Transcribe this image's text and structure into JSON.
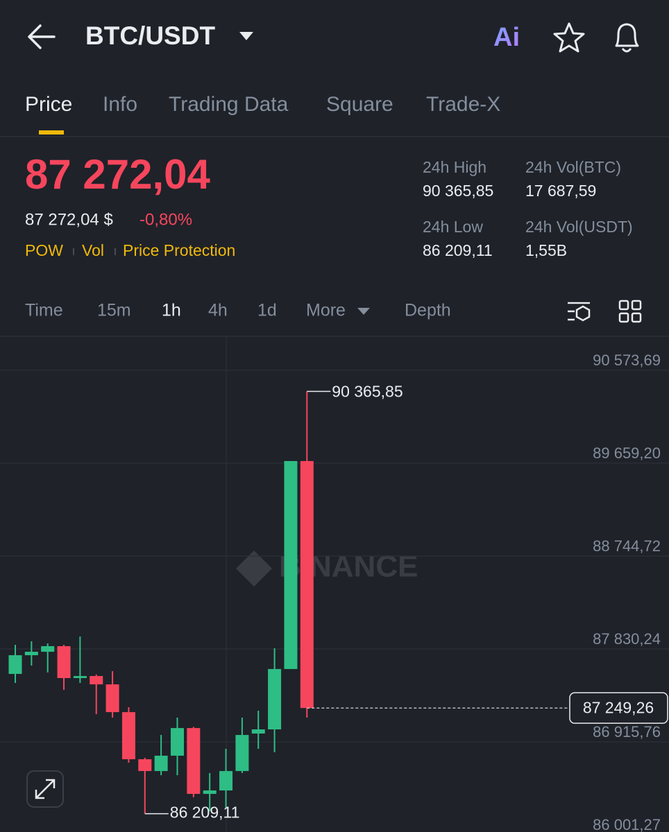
{
  "header": {
    "pair": "BTC/USDT",
    "ai": "Ai"
  },
  "tabs": [
    "Price",
    "Info",
    "Trading Data",
    "Square",
    "Trade-X"
  ],
  "price": {
    "last": "87 272,04",
    "fiat": "87 272,04 $",
    "change": "-0,80%",
    "tags": [
      "POW",
      "Vol",
      "Price Protection"
    ]
  },
  "stats": [
    {
      "label": "24h High",
      "value": "90 365,85"
    },
    {
      "label": "24h Vol(BTC)",
      "value": "17 687,59"
    },
    {
      "label": "24h Low",
      "value": "86 209,11"
    },
    {
      "label": "24h Vol(USDT)",
      "value": "1,55B"
    }
  ],
  "intervals": [
    "Time",
    "15m",
    "1h",
    "4h",
    "1d",
    "More",
    "Depth"
  ],
  "chart_data": {
    "type": "candlestick",
    "watermark": "BINANCE",
    "open": [
      87585,
      87769,
      87803,
      87858,
      87544,
      87564,
      87482,
      87209,
      86745,
      86629,
      86780,
      87052,
      86404,
      86438,
      86629,
      86998,
      87039,
      87633,
      89680
    ],
    "high": [
      87871,
      87906,
      87885,
      87871,
      87953,
      87579,
      87612,
      87257,
      86759,
      86984,
      87155,
      87064,
      86609,
      86848,
      87155,
      87223,
      87837,
      89680,
      90365.85
    ],
    "low": [
      87496,
      87667,
      87599,
      87428,
      87496,
      87189,
      87155,
      86711,
      86209.11,
      86588,
      86588,
      86370,
      86234,
      86259,
      86609,
      86848,
      86814,
      87633,
      87155
    ],
    "close": [
      87769,
      87803,
      87858,
      87544,
      87564,
      87482,
      87209,
      86745,
      86629,
      86780,
      87052,
      86404,
      86438,
      86629,
      86984,
      87039,
      87633,
      89680,
      87249.26
    ],
    "up_color": "#2ebd85",
    "down_color": "#f6465d",
    "ylim": [
      86029,
      90908
    ],
    "yticks": [
      {
        "value": 90573.69,
        "label": "90 573,69"
      },
      {
        "value": 89659.2,
        "label": "89 659,20"
      },
      {
        "value": 88744.72,
        "label": "88 744,72"
      },
      {
        "value": 87830.24,
        "label": "87 830,24"
      },
      {
        "value": 86915.76,
        "label": "86 915,76"
      },
      {
        "value": 86001.27,
        "label": "86 001,27"
      }
    ],
    "grid": true,
    "high_label": {
      "value": 90365.85,
      "label": "90 365,85"
    },
    "low_label": {
      "value": 86209.11,
      "label": "86 209,11"
    },
    "last_price": {
      "value": 87249.26,
      "label": "87 249,26"
    }
  }
}
